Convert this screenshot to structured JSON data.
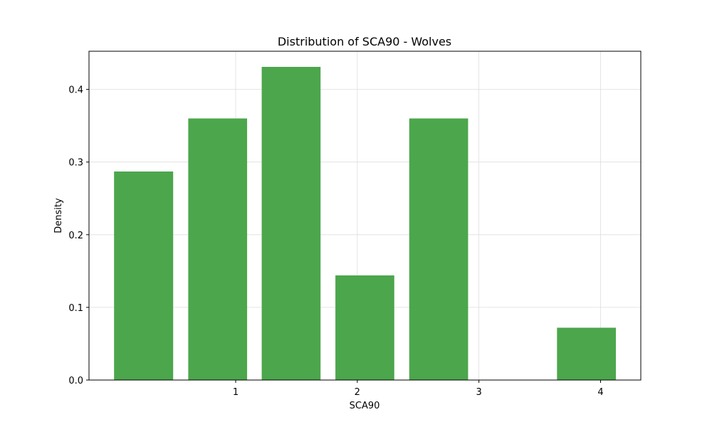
{
  "chart_data": {
    "type": "bar",
    "title": "Distribution of SCA90 - Wolves",
    "xlabel": "SCA90",
    "ylabel": "Density",
    "bars": [
      {
        "x_start": 0.0,
        "x_end": 0.486,
        "value": 0.287
      },
      {
        "x_start": 0.61,
        "x_end": 1.094,
        "value": 0.36
      },
      {
        "x_start": 1.214,
        "x_end": 1.698,
        "value": 0.431
      },
      {
        "x_start": 1.82,
        "x_end": 2.304,
        "value": 0.144
      },
      {
        "x_start": 2.427,
        "x_end": 2.911,
        "value": 0.36
      },
      {
        "x_start": 3.642,
        "x_end": 4.126,
        "value": 0.072
      }
    ],
    "x_ticks": [
      1,
      2,
      3,
      4
    ],
    "y_ticks": [
      0.0,
      0.1,
      0.2,
      0.3,
      0.4
    ],
    "y_tick_labels": [
      "0.0",
      "0.1",
      "0.2",
      "0.3",
      "0.4"
    ],
    "xlim": [
      -0.206,
      4.331
    ],
    "ylim": [
      0,
      0.4525
    ],
    "grid": true,
    "bar_color": "#4ca64c"
  }
}
